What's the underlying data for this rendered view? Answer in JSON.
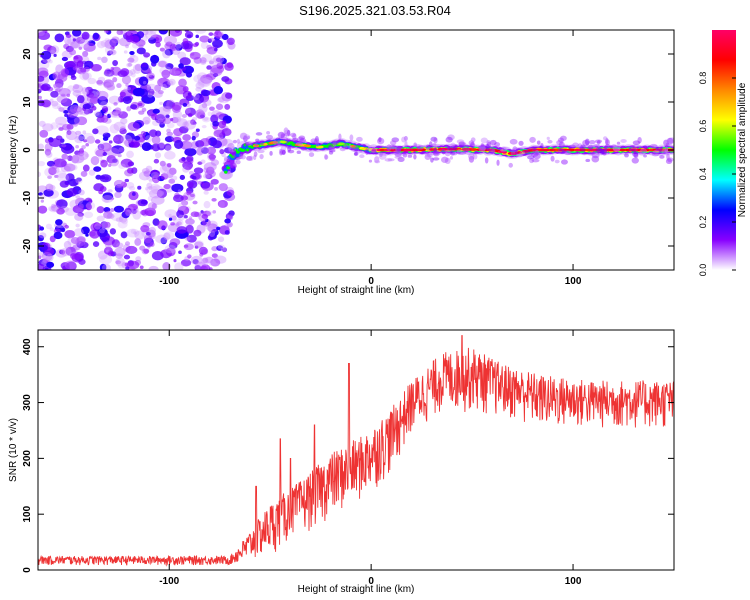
{
  "title": "S196.2025.321.03.53.R04",
  "chart_data": [
    {
      "type": "heatmap",
      "name": "spectrogram",
      "xlabel": "Height of straight line (km)",
      "ylabel": "Frequency (Hz)",
      "xlim": [
        -165,
        150
      ],
      "ylim": [
        -25,
        25
      ],
      "xticks": [
        -100,
        0,
        100
      ],
      "yticks": [
        -20,
        -10,
        0,
        10,
        20
      ],
      "xtick_labels": [
        "-100",
        "0",
        "100"
      ],
      "ytick_labels": [
        "-20",
        "-10",
        "0",
        "10",
        "20"
      ],
      "noise_region_x": [
        -165,
        -72
      ],
      "signal_track": [
        {
          "x": -72,
          "y": -4.5
        },
        {
          "x": -70,
          "y": -2.0
        },
        {
          "x": -67,
          "y": -0.5
        },
        {
          "x": -63,
          "y": 0.5
        },
        {
          "x": -55,
          "y": 1.0
        },
        {
          "x": -45,
          "y": 1.8
        },
        {
          "x": -35,
          "y": 1.0
        },
        {
          "x": -25,
          "y": 0.6
        },
        {
          "x": -15,
          "y": 1.3
        },
        {
          "x": -5,
          "y": 0.4
        },
        {
          "x": 0,
          "y": 0.0
        },
        {
          "x": 20,
          "y": 0.0
        },
        {
          "x": 40,
          "y": 0.2
        },
        {
          "x": 60,
          "y": 0.0
        },
        {
          "x": 70,
          "y": -0.8
        },
        {
          "x": 80,
          "y": 0.0
        },
        {
          "x": 100,
          "y": 0.0
        },
        {
          "x": 150,
          "y": 0.0
        }
      ],
      "colorbar": {
        "label": "Normalized spectral amplitude",
        "range": [
          0,
          1
        ],
        "ticks": [
          0.0,
          0.2,
          0.4,
          0.6,
          0.8
        ],
        "tick_labels": [
          "0.0",
          "0.2",
          "0.4",
          "0.6",
          "0.8"
        ],
        "colors": [
          "#ffffff",
          "#8800ff",
          "#0000ff",
          "#00ffff",
          "#00ff00",
          "#ffff00",
          "#ff8800",
          "#ff0000",
          "#ff0066"
        ]
      }
    },
    {
      "type": "line",
      "name": "snr",
      "xlabel": "Height of straight line (km)",
      "ylabel": "SNR (10 * v/v)",
      "xlim": [
        -165,
        150
      ],
      "ylim": [
        0,
        430
      ],
      "xticks": [
        -100,
        0,
        100
      ],
      "yticks": [
        0,
        100,
        200,
        300,
        400
      ],
      "xtick_labels": [
        "-100",
        "0",
        "100"
      ],
      "ytick_labels": [
        "0",
        "100",
        "200",
        "300",
        "400"
      ],
      "color": "#ee3333",
      "envelope": [
        {
          "x": -165,
          "low": 8,
          "high": 25
        },
        {
          "x": -70,
          "low": 8,
          "high": 25
        },
        {
          "x": -62,
          "low": 10,
          "high": 60
        },
        {
          "x": -50,
          "low": 25,
          "high": 120
        },
        {
          "x": -35,
          "low": 60,
          "high": 160
        },
        {
          "x": -20,
          "low": 90,
          "high": 210
        },
        {
          "x": -5,
          "low": 120,
          "high": 240
        },
        {
          "x": 10,
          "low": 170,
          "high": 290
        },
        {
          "x": 20,
          "low": 240,
          "high": 340
        },
        {
          "x": 35,
          "low": 280,
          "high": 390
        },
        {
          "x": 50,
          "low": 280,
          "high": 400
        },
        {
          "x": 65,
          "low": 270,
          "high": 370
        },
        {
          "x": 85,
          "low": 250,
          "high": 350
        },
        {
          "x": 110,
          "low": 250,
          "high": 340
        },
        {
          "x": 150,
          "low": 250,
          "high": 340
        }
      ],
      "spikes": [
        {
          "x": -57,
          "y": 150
        },
        {
          "x": -45,
          "y": 235
        },
        {
          "x": -40,
          "y": 200
        },
        {
          "x": -28,
          "y": 260
        },
        {
          "x": -11,
          "y": 370
        },
        {
          "x": 45,
          "y": 420
        }
      ]
    }
  ]
}
